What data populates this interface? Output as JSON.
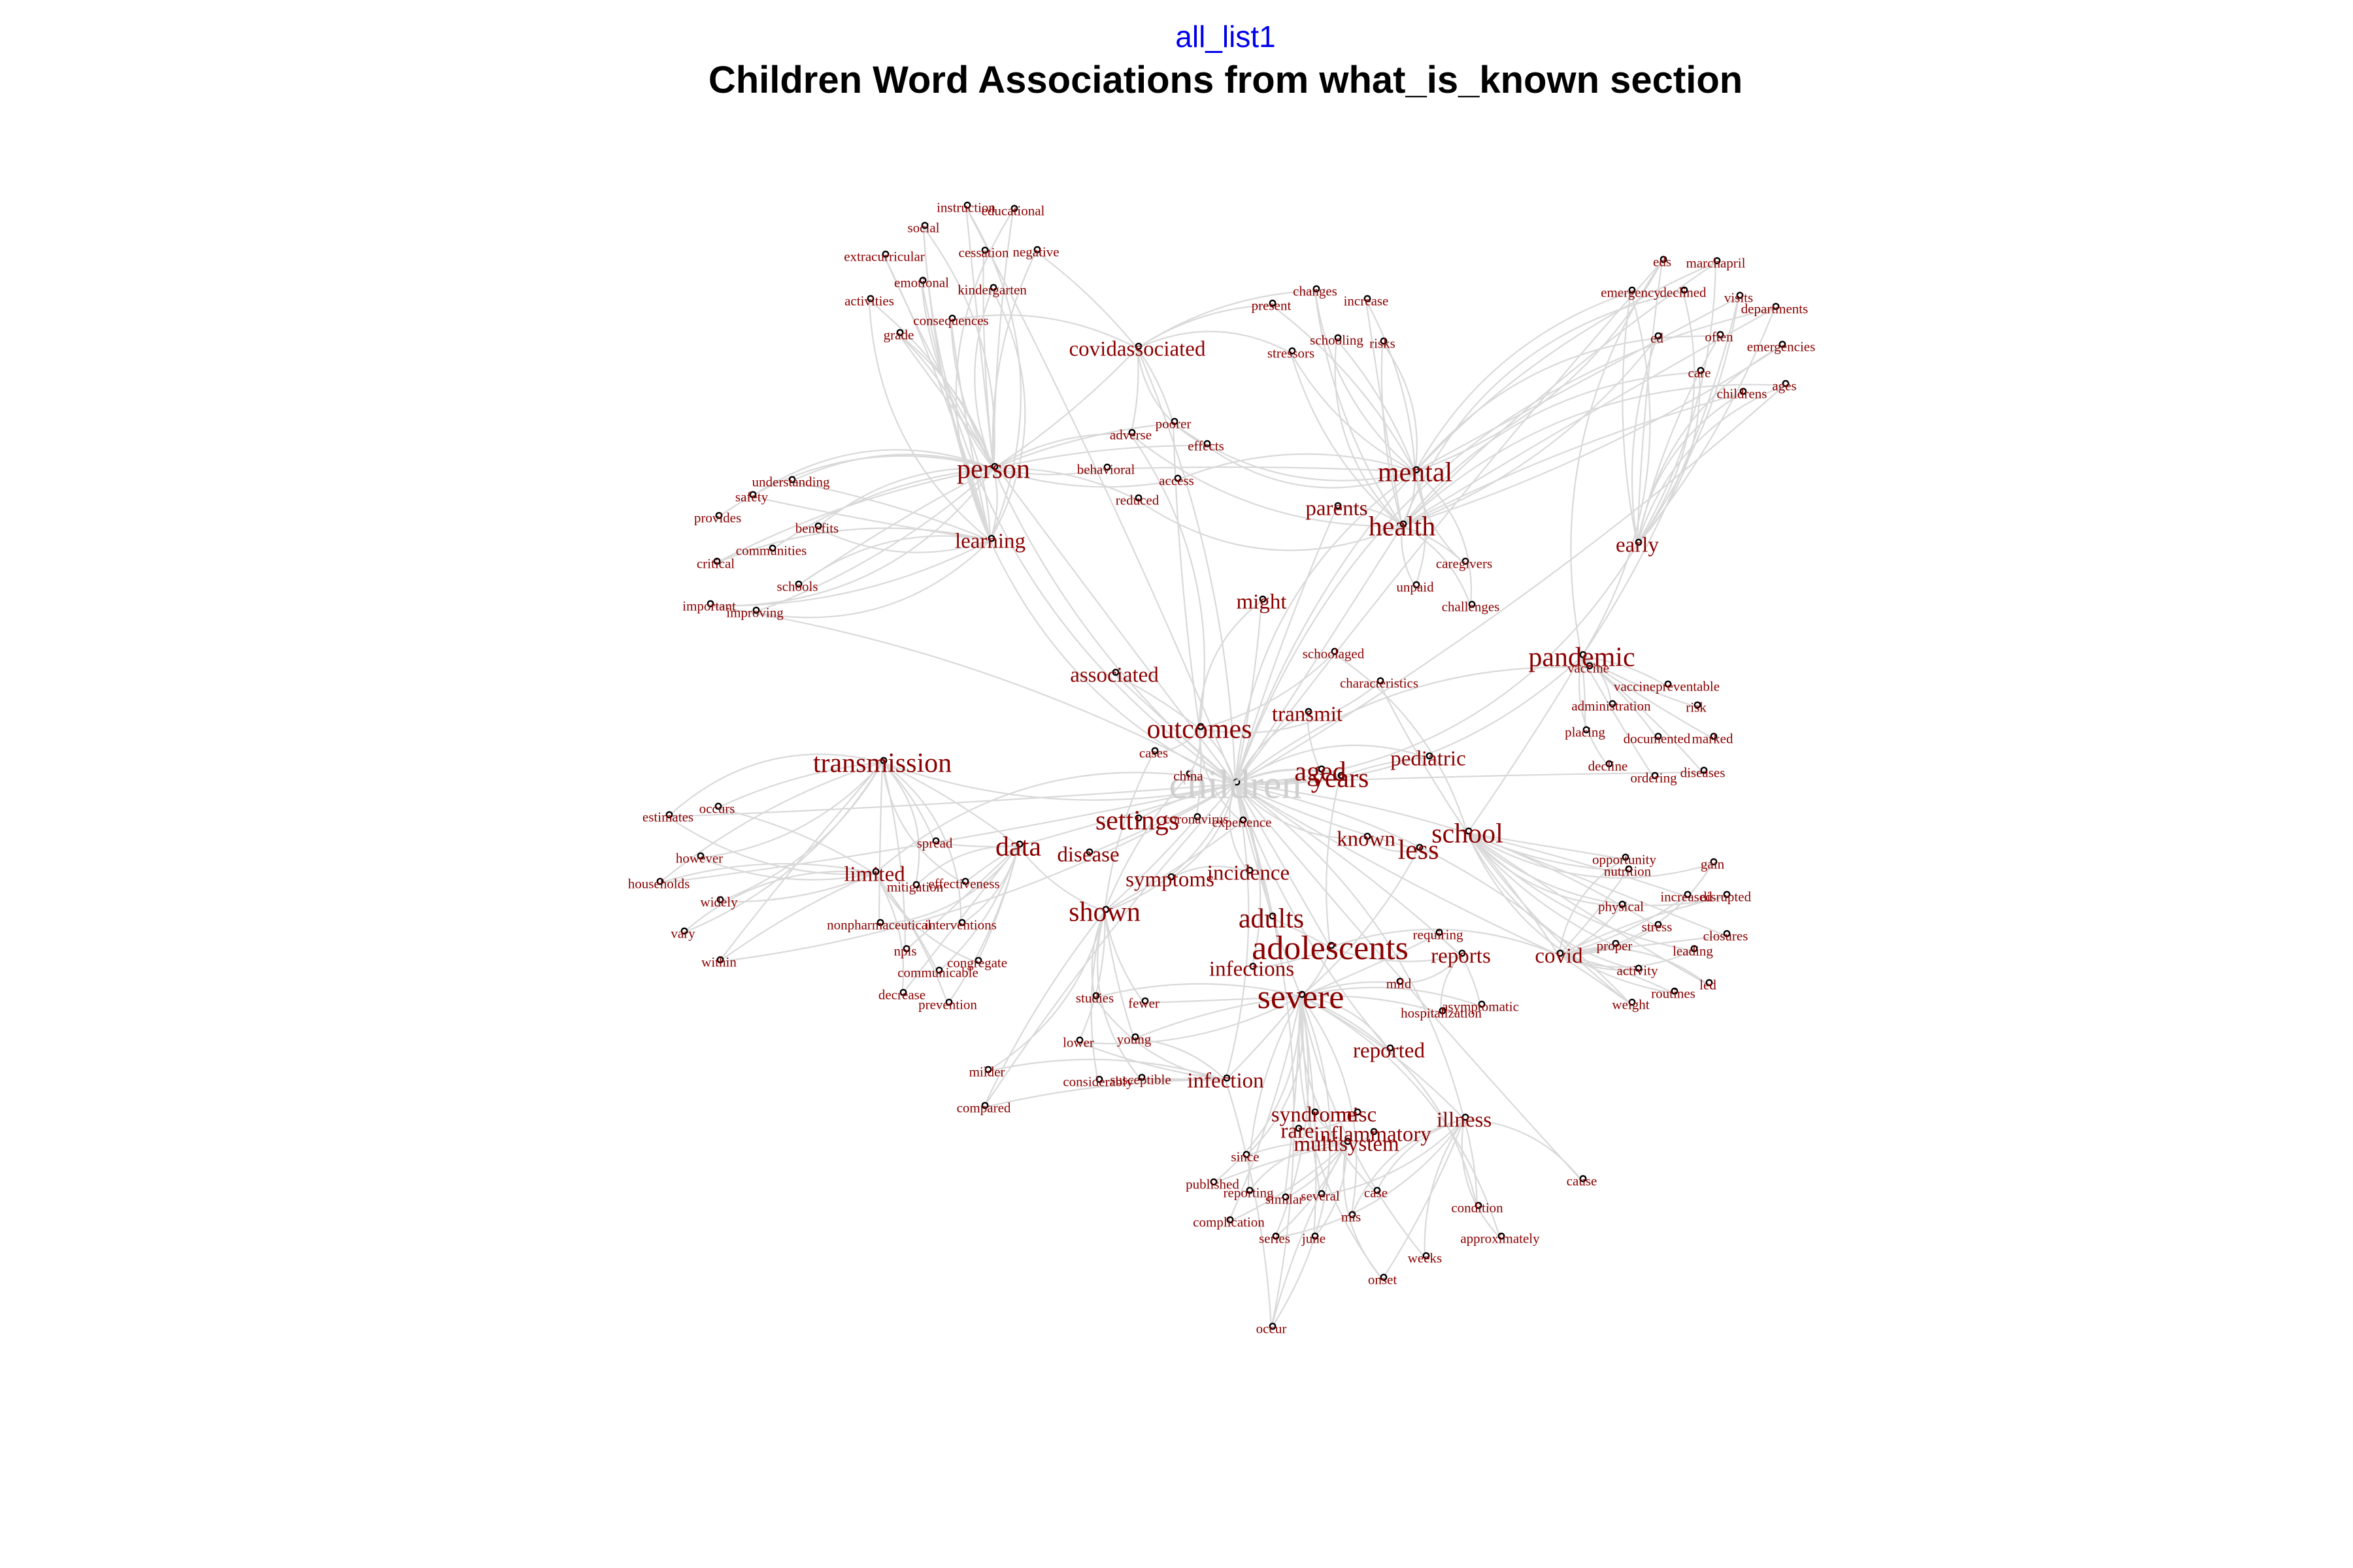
{
  "header": {
    "subtitle": "all_list1",
    "title": "Children Word Associations from what_is_known section"
  },
  "colors": {
    "background": "#ffffff",
    "edge": "#d9d9d9",
    "label": "#8b0000",
    "central_label": "#cfcfcf",
    "subtitle": "#0000ee",
    "title": "#000000"
  },
  "network": {
    "central_word": "children",
    "terms": [
      {
        "label": "children",
        "weight": 5
      },
      {
        "label": "adolescents",
        "weight": 4
      },
      {
        "label": "severe",
        "weight": 4
      },
      {
        "label": "years",
        "weight": 3
      },
      {
        "label": "aged",
        "weight": 3
      },
      {
        "label": "adults",
        "weight": 3
      },
      {
        "label": "health",
        "weight": 3
      },
      {
        "label": "mental",
        "weight": 3
      },
      {
        "label": "pandemic",
        "weight": 3
      },
      {
        "label": "less",
        "weight": 3
      },
      {
        "label": "school",
        "weight": 3
      },
      {
        "label": "person",
        "weight": 3
      },
      {
        "label": "outcomes",
        "weight": 3
      },
      {
        "label": "settings",
        "weight": 3
      },
      {
        "label": "shown",
        "weight": 3
      },
      {
        "label": "data",
        "weight": 3
      },
      {
        "label": "transmission",
        "weight": 3
      },
      {
        "label": "covidassociated",
        "weight": 2
      },
      {
        "label": "learning",
        "weight": 2
      },
      {
        "label": "might",
        "weight": 2
      },
      {
        "label": "associated",
        "weight": 2
      },
      {
        "label": "transmit",
        "weight": 2
      },
      {
        "label": "pediatric",
        "weight": 2
      },
      {
        "label": "known",
        "weight": 2
      },
      {
        "label": "incidence",
        "weight": 2
      },
      {
        "label": "symptoms",
        "weight": 2
      },
      {
        "label": "disease",
        "weight": 2
      },
      {
        "label": "limited",
        "weight": 2
      },
      {
        "label": "infections",
        "weight": 2
      },
      {
        "label": "reports",
        "weight": 2
      },
      {
        "label": "covid",
        "weight": 2
      },
      {
        "label": "reported",
        "weight": 2
      },
      {
        "label": "infection",
        "weight": 2
      },
      {
        "label": "syndrome",
        "weight": 2
      },
      {
        "label": "misc",
        "weight": 2
      },
      {
        "label": "rare",
        "weight": 2
      },
      {
        "label": "inflammatory",
        "weight": 2
      },
      {
        "label": "multisystem",
        "weight": 2
      },
      {
        "label": "illness",
        "weight": 2
      },
      {
        "label": "early",
        "weight": 2
      },
      {
        "label": "parents",
        "weight": 2
      },
      {
        "label": "instruction",
        "weight": 1
      },
      {
        "label": "educational",
        "weight": 1
      },
      {
        "label": "social",
        "weight": 1
      },
      {
        "label": "extracurricular",
        "weight": 1
      },
      {
        "label": "cessation",
        "weight": 1
      },
      {
        "label": "negative",
        "weight": 1
      },
      {
        "label": "emotional",
        "weight": 1
      },
      {
        "label": "activities",
        "weight": 1
      },
      {
        "label": "kindergarten",
        "weight": 1
      },
      {
        "label": "consequences",
        "weight": 1
      },
      {
        "label": "grade",
        "weight": 1
      },
      {
        "label": "changes",
        "weight": 1
      },
      {
        "label": "increase",
        "weight": 1
      },
      {
        "label": "present",
        "weight": 1
      },
      {
        "label": "schooling",
        "weight": 1
      },
      {
        "label": "risks",
        "weight": 1
      },
      {
        "label": "stressors",
        "weight": 1
      },
      {
        "label": "eds",
        "weight": 1
      },
      {
        "label": "marchapril",
        "weight": 1
      },
      {
        "label": "emergency",
        "weight": 1
      },
      {
        "label": "declined",
        "weight": 1
      },
      {
        "label": "visits",
        "weight": 1
      },
      {
        "label": "departments",
        "weight": 1
      },
      {
        "label": "ed",
        "weight": 1
      },
      {
        "label": "often",
        "weight": 1
      },
      {
        "label": "emergencies",
        "weight": 1
      },
      {
        "label": "care",
        "weight": 1
      },
      {
        "label": "childrens",
        "weight": 1
      },
      {
        "label": "ages",
        "weight": 1
      },
      {
        "label": "poorer",
        "weight": 1
      },
      {
        "label": "adverse",
        "weight": 1
      },
      {
        "label": "effects",
        "weight": 1
      },
      {
        "label": "behavioral",
        "weight": 1
      },
      {
        "label": "access",
        "weight": 1
      },
      {
        "label": "reduced",
        "weight": 1
      },
      {
        "label": "understanding",
        "weight": 1
      },
      {
        "label": "safety",
        "weight": 1
      },
      {
        "label": "provides",
        "weight": 1
      },
      {
        "label": "benefits",
        "weight": 1
      },
      {
        "label": "communities",
        "weight": 1
      },
      {
        "label": "critical",
        "weight": 1
      },
      {
        "label": "schools",
        "weight": 1
      },
      {
        "label": "important",
        "weight": 1
      },
      {
        "label": "improving",
        "weight": 1
      },
      {
        "label": "caregivers",
        "weight": 1
      },
      {
        "label": "unpaid",
        "weight": 1
      },
      {
        "label": "challenges",
        "weight": 1
      },
      {
        "label": "schoolaged",
        "weight": 1
      },
      {
        "label": "characteristics",
        "weight": 1
      },
      {
        "label": "vaccine",
        "weight": 1
      },
      {
        "label": "vaccinepreventable",
        "weight": 1
      },
      {
        "label": "administration",
        "weight": 1
      },
      {
        "label": "risk",
        "weight": 1
      },
      {
        "label": "placing",
        "weight": 1
      },
      {
        "label": "documented",
        "weight": 1
      },
      {
        "label": "marked",
        "weight": 1
      },
      {
        "label": "decline",
        "weight": 1
      },
      {
        "label": "ordering",
        "weight": 1
      },
      {
        "label": "diseases",
        "weight": 1
      },
      {
        "label": "cases",
        "weight": 1
      },
      {
        "label": "china",
        "weight": 1
      },
      {
        "label": "coronavirus",
        "weight": 1
      },
      {
        "label": "experience",
        "weight": 1
      },
      {
        "label": "spread",
        "weight": 1
      },
      {
        "label": "mitigation",
        "weight": 1
      },
      {
        "label": "effectiveness",
        "weight": 1
      },
      {
        "label": "nonpharmaceutical",
        "weight": 1
      },
      {
        "label": "interventions",
        "weight": 1
      },
      {
        "label": "npis",
        "weight": 1
      },
      {
        "label": "communicable",
        "weight": 1
      },
      {
        "label": "congregate",
        "weight": 1
      },
      {
        "label": "decrease",
        "weight": 1
      },
      {
        "label": "prevention",
        "weight": 1
      },
      {
        "label": "estimates",
        "weight": 1
      },
      {
        "label": "occurs",
        "weight": 1
      },
      {
        "label": "however",
        "weight": 1
      },
      {
        "label": "households",
        "weight": 1
      },
      {
        "label": "widely",
        "weight": 1
      },
      {
        "label": "vary",
        "weight": 1
      },
      {
        "label": "within",
        "weight": 1
      },
      {
        "label": "opportunity",
        "weight": 1
      },
      {
        "label": "gain",
        "weight": 1
      },
      {
        "label": "nutrition",
        "weight": 1
      },
      {
        "label": "increased",
        "weight": 1
      },
      {
        "label": "disrupted",
        "weight": 1
      },
      {
        "label": "physical",
        "weight": 1
      },
      {
        "label": "stress",
        "weight": 1
      },
      {
        "label": "closures",
        "weight": 1
      },
      {
        "label": "proper",
        "weight": 1
      },
      {
        "label": "leading",
        "weight": 1
      },
      {
        "label": "activity",
        "weight": 1
      },
      {
        "label": "led",
        "weight": 1
      },
      {
        "label": "routines",
        "weight": 1
      },
      {
        "label": "weight",
        "weight": 1
      },
      {
        "label": "requiring",
        "weight": 1
      },
      {
        "label": "mild",
        "weight": 1
      },
      {
        "label": "hospitalization",
        "weight": 1
      },
      {
        "label": "asymptomatic",
        "weight": 1
      },
      {
        "label": "studies",
        "weight": 1
      },
      {
        "label": "fewer",
        "weight": 1
      },
      {
        "label": "lower",
        "weight": 1
      },
      {
        "label": "young",
        "weight": 1
      },
      {
        "label": "milder",
        "weight": 1
      },
      {
        "label": "considerably",
        "weight": 1
      },
      {
        "label": "susceptible",
        "weight": 1
      },
      {
        "label": "compared",
        "weight": 1
      },
      {
        "label": "since",
        "weight": 1
      },
      {
        "label": "published",
        "weight": 1
      },
      {
        "label": "reporting",
        "weight": 1
      },
      {
        "label": "similar",
        "weight": 1
      },
      {
        "label": "several",
        "weight": 1
      },
      {
        "label": "case",
        "weight": 1
      },
      {
        "label": "mis",
        "weight": 1
      },
      {
        "label": "complication",
        "weight": 1
      },
      {
        "label": "series",
        "weight": 1
      },
      {
        "label": "june",
        "weight": 1
      },
      {
        "label": "condition",
        "weight": 1
      },
      {
        "label": "approximately",
        "weight": 1
      },
      {
        "label": "weeks",
        "weight": 1
      },
      {
        "label": "onset",
        "weight": 1
      },
      {
        "label": "cause",
        "weight": 1
      },
      {
        "label": "occur",
        "weight": 1
      }
    ]
  }
}
